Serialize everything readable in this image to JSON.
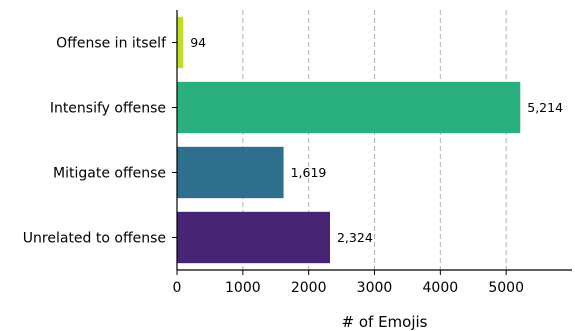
{
  "chart_data": {
    "type": "bar",
    "orientation": "horizontal",
    "categories": [
      "Offense in itself",
      "Intensify offense",
      "Mitigate offense",
      "Unrelated to offense"
    ],
    "values": [
      94,
      5214,
      1619,
      2324
    ],
    "data_labels": [
      "94",
      "5,214",
      "1,619",
      "2,324"
    ],
    "colors": [
      "#bddf26",
      "#2ab07f",
      "#2e6f8e",
      "#482475"
    ],
    "xlabel": "# of Emojis",
    "ylabel": "",
    "xlim": [
      0,
      6000
    ],
    "xticks": [
      0,
      1000,
      2000,
      3000,
      4000,
      5000
    ],
    "xtick_labels": [
      "0",
      "1000",
      "2000",
      "3000",
      "4000",
      "5000"
    ],
    "grid": "vertical-dashed",
    "legend": "none"
  }
}
